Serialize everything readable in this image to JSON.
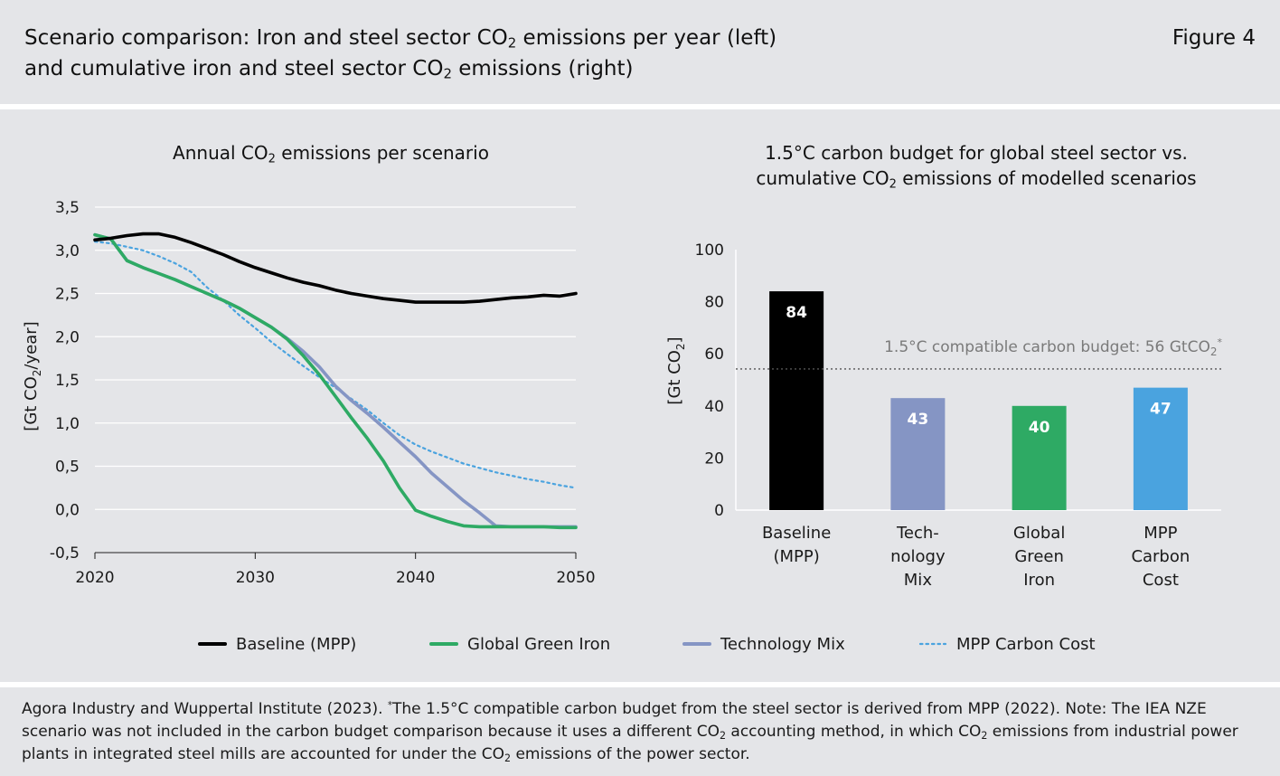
{
  "header": {
    "title_line1_pre": "Scenario comparison: Iron and steel sector CO",
    "title_line1_sub": "2",
    "title_line1_post": " emissions per year (left)",
    "title_line2_pre": "and cumulative iron and steel sector CO",
    "title_line2_sub": "2",
    "title_line2_post": " emissions (right)",
    "figure_label": "Figure 4"
  },
  "left_panel": {
    "title_pre": "Annual CO",
    "title_sub": "2",
    "title_post": " emissions per scenario",
    "ylabel_pre": "[Gt CO",
    "ylabel_sub": "2",
    "ylabel_post": "/year]"
  },
  "right_panel": {
    "title_line1": "1.5°C carbon budget for global steel sector vs.",
    "title_line2_pre": "cumulative CO",
    "title_line2_sub": "2",
    "title_line2_post": " emissions of modelled scenarios",
    "ylabel_pre": "[Gt CO",
    "ylabel_sub": "2",
    "ylabel_post": "]",
    "budget_label_pre": "1.5°C compatible carbon budget: 56 GtCO",
    "budget_label_sub": "2",
    "budget_label_sup": "*"
  },
  "legend": [
    {
      "label": "Baseline (MPP)",
      "color": "#000000",
      "dash": false
    },
    {
      "label": "Global Green Iron",
      "color": "#2eaa64",
      "dash": false
    },
    {
      "label": "Technology Mix",
      "color": "#8595c4",
      "dash": false
    },
    {
      "label": "MPP Carbon Cost",
      "color": "#4aa3df",
      "dash": true
    }
  ],
  "footnote": {
    "part1": "Agora Industry and Wuppertal Institute (2023). ",
    "star": "*",
    "part2": "The 1.5°C compatible carbon budget from the steel sector is derived from MPP (2022). Note: The IEA NZE scenario was not included in the carbon budget comparison because it uses a different CO",
    "sub1": "2",
    "part3": " accounting method, in which CO",
    "sub2": "2",
    "part4": " emissions from industrial power plants in integrated steel mills are accounted for under the CO",
    "sub3": "2",
    "part5": " emissions of the power sector."
  },
  "chart_data": [
    {
      "type": "line",
      "xlim": [
        2020,
        2050
      ],
      "ylim": [
        -0.5,
        3.5
      ],
      "x_ticks": [
        "2020",
        "2030",
        "2040",
        "2050"
      ],
      "y_ticks": [
        "3,5",
        "3,0",
        "2,5",
        "2,0",
        "1,5",
        "1,0",
        "0,5",
        "0,0",
        "-0,5"
      ],
      "grid": true,
      "legend_position": "bottom",
      "x": [
        2020,
        2021,
        2022,
        2023,
        2024,
        2025,
        2026,
        2027,
        2028,
        2029,
        2030,
        2031,
        2032,
        2033,
        2034,
        2035,
        2036,
        2037,
        2038,
        2039,
        2040,
        2041,
        2042,
        2043,
        2044,
        2045,
        2046,
        2047,
        2048,
        2049,
        2050
      ],
      "series": [
        {
          "name": "Baseline (MPP)",
          "color": "#000000",
          "style": "solid",
          "values": [
            3.12,
            3.14,
            3.17,
            3.19,
            3.19,
            3.15,
            3.09,
            3.02,
            2.95,
            2.87,
            2.8,
            2.74,
            2.68,
            2.63,
            2.59,
            2.54,
            2.5,
            2.47,
            2.44,
            2.42,
            2.4,
            2.4,
            2.4,
            2.4,
            2.41,
            2.43,
            2.45,
            2.46,
            2.48,
            2.47,
            2.5
          ]
        },
        {
          "name": "Global Green Iron",
          "color": "#2eaa64",
          "style": "solid",
          "values": [
            3.18,
            3.13,
            2.88,
            2.8,
            2.73,
            2.66,
            2.58,
            2.5,
            2.42,
            2.33,
            2.22,
            2.11,
            1.97,
            1.78,
            1.56,
            1.31,
            1.06,
            0.82,
            0.56,
            0.25,
            -0.01,
            -0.08,
            -0.14,
            -0.19,
            -0.2,
            -0.2,
            -0.2,
            -0.2,
            -0.2,
            -0.21,
            -0.21
          ]
        },
        {
          "name": "Technology Mix",
          "color": "#8595c4",
          "style": "solid",
          "values": [
            3.18,
            3.13,
            2.88,
            2.8,
            2.73,
            2.66,
            2.58,
            2.5,
            2.42,
            2.33,
            2.22,
            2.11,
            1.98,
            1.83,
            1.65,
            1.43,
            1.26,
            1.11,
            0.95,
            0.78,
            0.61,
            0.42,
            0.26,
            0.1,
            -0.04,
            -0.19,
            -0.2,
            -0.2,
            -0.2,
            -0.2,
            -0.2
          ]
        },
        {
          "name": "MPP Carbon Cost",
          "color": "#4aa3df",
          "style": "dotted",
          "values": [
            3.1,
            3.08,
            3.04,
            3.0,
            2.93,
            2.85,
            2.75,
            2.57,
            2.42,
            2.25,
            2.1,
            1.94,
            1.8,
            1.66,
            1.53,
            1.41,
            1.28,
            1.15,
            1.0,
            0.86,
            0.75,
            0.67,
            0.6,
            0.53,
            0.48,
            0.43,
            0.39,
            0.35,
            0.32,
            0.28,
            0.25
          ]
        }
      ]
    },
    {
      "type": "bar",
      "categories": [
        [
          "Baseline",
          "(MPP)"
        ],
        [
          "Tech-",
          "nology",
          "Mix"
        ],
        [
          "Global",
          "Green",
          "Iron"
        ],
        [
          "MPP",
          "Carbon",
          "Cost"
        ]
      ],
      "values": [
        84,
        43,
        40,
        47
      ],
      "labels": [
        "84",
        "43",
        "40",
        "47"
      ],
      "colors": [
        "#000000",
        "#8595c4",
        "#2eaa64",
        "#4aa3df"
      ],
      "ylim": [
        0,
        100
      ],
      "y_ticks": [
        "100",
        "80",
        "60",
        "40",
        "20",
        "0"
      ],
      "y_tick_values": [
        100,
        80,
        60,
        40,
        20,
        0
      ],
      "reference_line": {
        "value": 56,
        "style": "dotted",
        "color": "#555555"
      },
      "grid": false
    }
  ]
}
